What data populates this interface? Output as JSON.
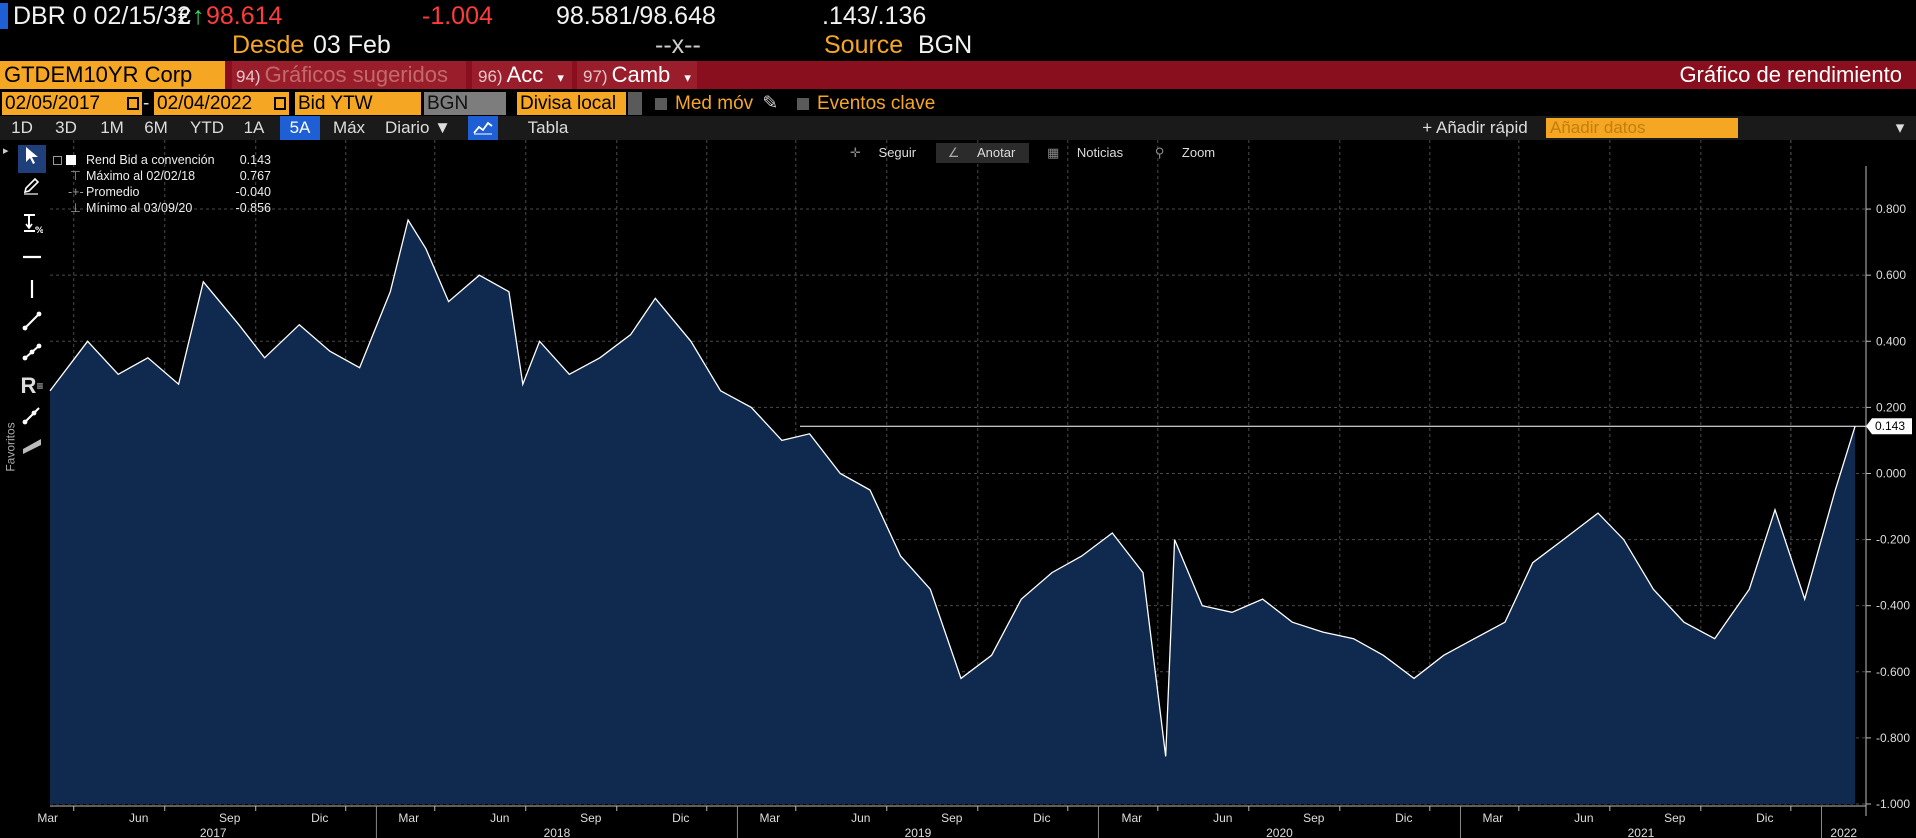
{
  "quote": {
    "security": "DBR 0 02/15/32",
    "currency_symbol": "€",
    "arrow": "↑",
    "price": "98.614",
    "change": "-1.004",
    "bid_ask": "98.581/98.648",
    "yields": ".143/.136",
    "since_label": "Desde",
    "since_value": "03 Feb",
    "mid_marker": "--x--",
    "source_label": "Source",
    "source_value": "BGN"
  },
  "function_bar": {
    "ticker": "GTDEM10YR Corp",
    "suggested_num": "94)",
    "suggested_label": "Gráficos sugeridos",
    "acc_num": "96)",
    "acc_label": "Acc",
    "camb_num": "97)",
    "camb_label": "Camb",
    "caret": "▾",
    "title": "Gráfico de rendimiento"
  },
  "params": {
    "start_date": "02/05/2017",
    "dash": "-",
    "end_date": "02/04/2022",
    "field": "Bid YTW",
    "source": "BGN",
    "currency": "Divisa local",
    "moving_avg": "Med móv",
    "key_events": "Eventos clave"
  },
  "range_bar": {
    "ranges": [
      "1D",
      "3D",
      "1M",
      "6M",
      "YTD",
      "1A",
      "5A",
      "Máx"
    ],
    "active_range": "5A",
    "frequency": "Diario ▼",
    "table": "Tabla",
    "quick_add": "+ Añadir rápid",
    "add_data_placeholder": "Añadir datos"
  },
  "toolbar": {
    "favorites": "Favoritos",
    "tools": [
      "pointer-icon",
      "pencil-icon",
      "percent-icon",
      "horizontal-line-icon",
      "vertical-line-icon",
      "trend-line-icon",
      "channel-icon",
      "retracement-icon",
      "ray-icon",
      "band-icon"
    ]
  },
  "chart_hints": {
    "follow": "Seguir",
    "annotate": "Anotar",
    "news": "Noticias",
    "zoom": "Zoom"
  },
  "legend": {
    "rows": [
      {
        "label": "Rend Bid a convención",
        "value": "0.143"
      },
      {
        "label": "Máximo al 02/02/18",
        "value": "0.767"
      },
      {
        "label": "Promedio",
        "value": "-0.040"
      },
      {
        "label": "Mínimo al 03/09/20",
        "value": "-0.856"
      }
    ]
  },
  "colors": {
    "accent": "#f5a623",
    "bar_red": "#8a0f1e",
    "area_fill": "#0f2a4e",
    "line": "#ffffff",
    "active_blue": "#1f5fd6"
  },
  "chart_data": {
    "type": "area",
    "ylim": [
      -1.0,
      0.9
    ],
    "yticks": [
      0.8,
      0.6,
      0.4,
      0.2,
      0.0,
      -0.2,
      -0.4,
      -0.6,
      -0.8,
      -1.0
    ],
    "ytick_labels": [
      "0.800",
      "0.600",
      "0.400",
      "0.200",
      "0.000",
      "-0.200",
      "-0.400",
      "-0.600",
      "-0.800",
      "-1.000"
    ],
    "last_value": 0.143,
    "last_value_label": "0.143",
    "month_ticks": [
      "Mar",
      "Jun",
      "Sep",
      "Dic",
      "Mar",
      "Jun",
      "Sep",
      "Dic",
      "Mar",
      "Jun",
      "Sep",
      "Dic",
      "Mar",
      "Jun",
      "Sep",
      "Dic",
      "Mar",
      "Jun",
      "Sep",
      "Dic"
    ],
    "year_labels": [
      "2017",
      "2018",
      "2019",
      "2020",
      "2021",
      "2022"
    ],
    "x_dates": [
      "2017-02-05",
      "2017-03-15",
      "2017-04-15",
      "2017-05-15",
      "2017-06-15",
      "2017-07-10",
      "2017-08-15",
      "2017-09-10",
      "2017-10-15",
      "2017-11-15",
      "2017-12-15",
      "2018-01-15",
      "2018-02-02",
      "2018-02-20",
      "2018-03-15",
      "2018-04-15",
      "2018-05-15",
      "2018-05-29",
      "2018-06-15",
      "2018-07-15",
      "2018-08-15",
      "2018-09-15",
      "2018-10-10",
      "2018-11-15",
      "2018-12-15",
      "2019-01-15",
      "2019-02-15",
      "2019-03-15",
      "2019-04-15",
      "2019-05-15",
      "2019-06-15",
      "2019-07-15",
      "2019-08-15",
      "2019-09-15",
      "2019-10-15",
      "2019-11-15",
      "2019-12-15",
      "2020-01-15",
      "2020-02-15",
      "2020-03-09",
      "2020-03-18",
      "2020-04-15",
      "2020-05-15",
      "2020-06-15",
      "2020-07-15",
      "2020-08-15",
      "2020-09-15",
      "2020-10-15",
      "2020-11-15",
      "2020-12-15",
      "2021-01-15",
      "2021-02-15",
      "2021-03-15",
      "2021-04-15",
      "2021-05-20",
      "2021-06-15",
      "2021-07-15",
      "2021-08-15",
      "2021-09-15",
      "2021-10-20",
      "2021-11-15",
      "2021-12-15",
      "2022-01-15",
      "2022-02-04"
    ],
    "y_values": [
      0.25,
      0.4,
      0.3,
      0.35,
      0.27,
      0.58,
      0.45,
      0.35,
      0.45,
      0.37,
      0.32,
      0.55,
      0.767,
      0.68,
      0.52,
      0.6,
      0.55,
      0.27,
      0.4,
      0.3,
      0.35,
      0.42,
      0.53,
      0.4,
      0.25,
      0.2,
      0.1,
      0.12,
      0.0,
      -0.05,
      -0.25,
      -0.35,
      -0.62,
      -0.55,
      -0.38,
      -0.3,
      -0.25,
      -0.18,
      -0.3,
      -0.856,
      -0.2,
      -0.4,
      -0.42,
      -0.38,
      -0.45,
      -0.48,
      -0.5,
      -0.55,
      -0.62,
      -0.55,
      -0.5,
      -0.45,
      -0.27,
      -0.2,
      -0.12,
      -0.2,
      -0.35,
      -0.45,
      -0.5,
      -0.35,
      -0.11,
      -0.38,
      -0.05,
      0.143
    ]
  }
}
